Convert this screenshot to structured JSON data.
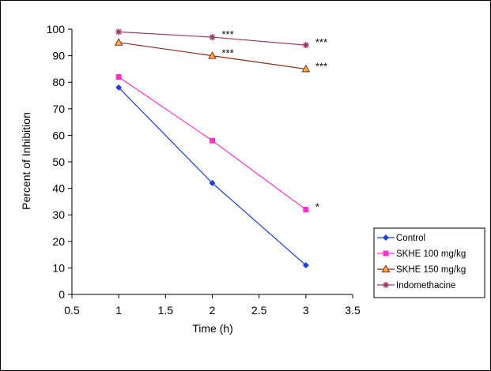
{
  "chart_data": {
    "type": "line",
    "title": "",
    "xlabel": "Time (h)",
    "ylabel": "Percent of Inhibition",
    "xlim": [
      0.5,
      3.5
    ],
    "ylim": [
      0,
      100
    ],
    "x_ticks": [
      "0.5",
      "1",
      "1.5",
      "2",
      "2.5",
      "3",
      "3.5"
    ],
    "y_ticks": [
      "0",
      "10",
      "20",
      "30",
      "40",
      "50",
      "60",
      "70",
      "80",
      "90",
      "100"
    ],
    "grid": false,
    "legend_position": "right",
    "x": [
      1,
      2,
      3
    ],
    "series": [
      {
        "name": "Control",
        "values": [
          78,
          42,
          11
        ],
        "color": "#1f3fd6",
        "marker": "diamond"
      },
      {
        "name": "SKHE 100 mg/kg",
        "values": [
          82,
          58,
          32
        ],
        "color": "#ff33cc",
        "marker": "square"
      },
      {
        "name": "SKHE 150 mg/kg",
        "values": [
          95,
          90,
          85
        ],
        "color": "#8b2a1a",
        "marker": "triangle",
        "marker_fill": "#ffb347"
      },
      {
        "name": "Indomethacine",
        "values": [
          99,
          97,
          94
        ],
        "color": "#9c3a6a",
        "marker": "star"
      }
    ],
    "annotations": [
      {
        "x": 2,
        "y": 97,
        "text": "***"
      },
      {
        "x": 3,
        "y": 94,
        "text": "***"
      },
      {
        "x": 2,
        "y": 90,
        "text": "***"
      },
      {
        "x": 3,
        "y": 85,
        "text": "***"
      },
      {
        "x": 3,
        "y": 32,
        "text": "*"
      }
    ]
  }
}
